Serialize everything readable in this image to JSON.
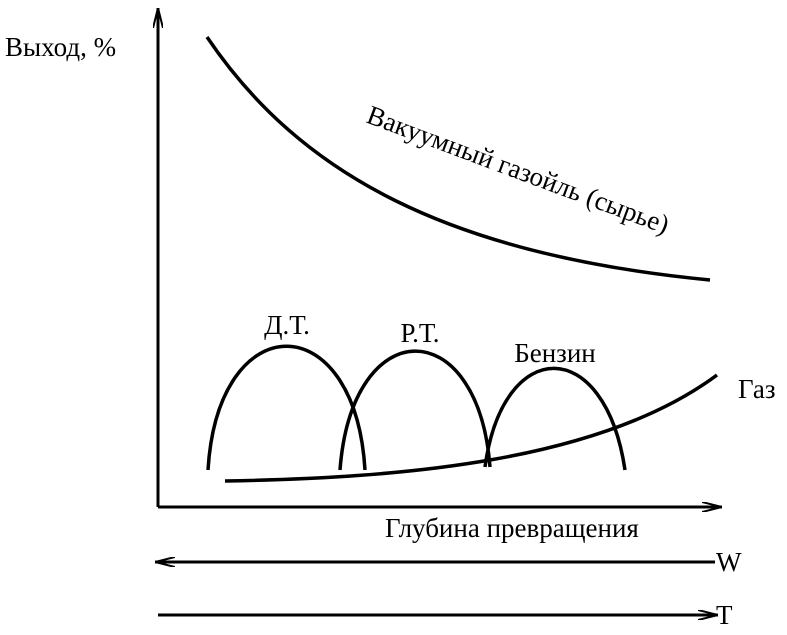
{
  "y_axis": {
    "label": "Выход, %"
  },
  "x_axis": {
    "label": "Глубина превращения"
  },
  "curves": {
    "feed": "Вакуумный газойль (сырье)",
    "gas": "Газ",
    "diesel": "Д.Т.",
    "jet": "Р.Т.",
    "gasoline": "Бензин"
  },
  "arrows": {
    "w": "W",
    "t": "T"
  }
}
